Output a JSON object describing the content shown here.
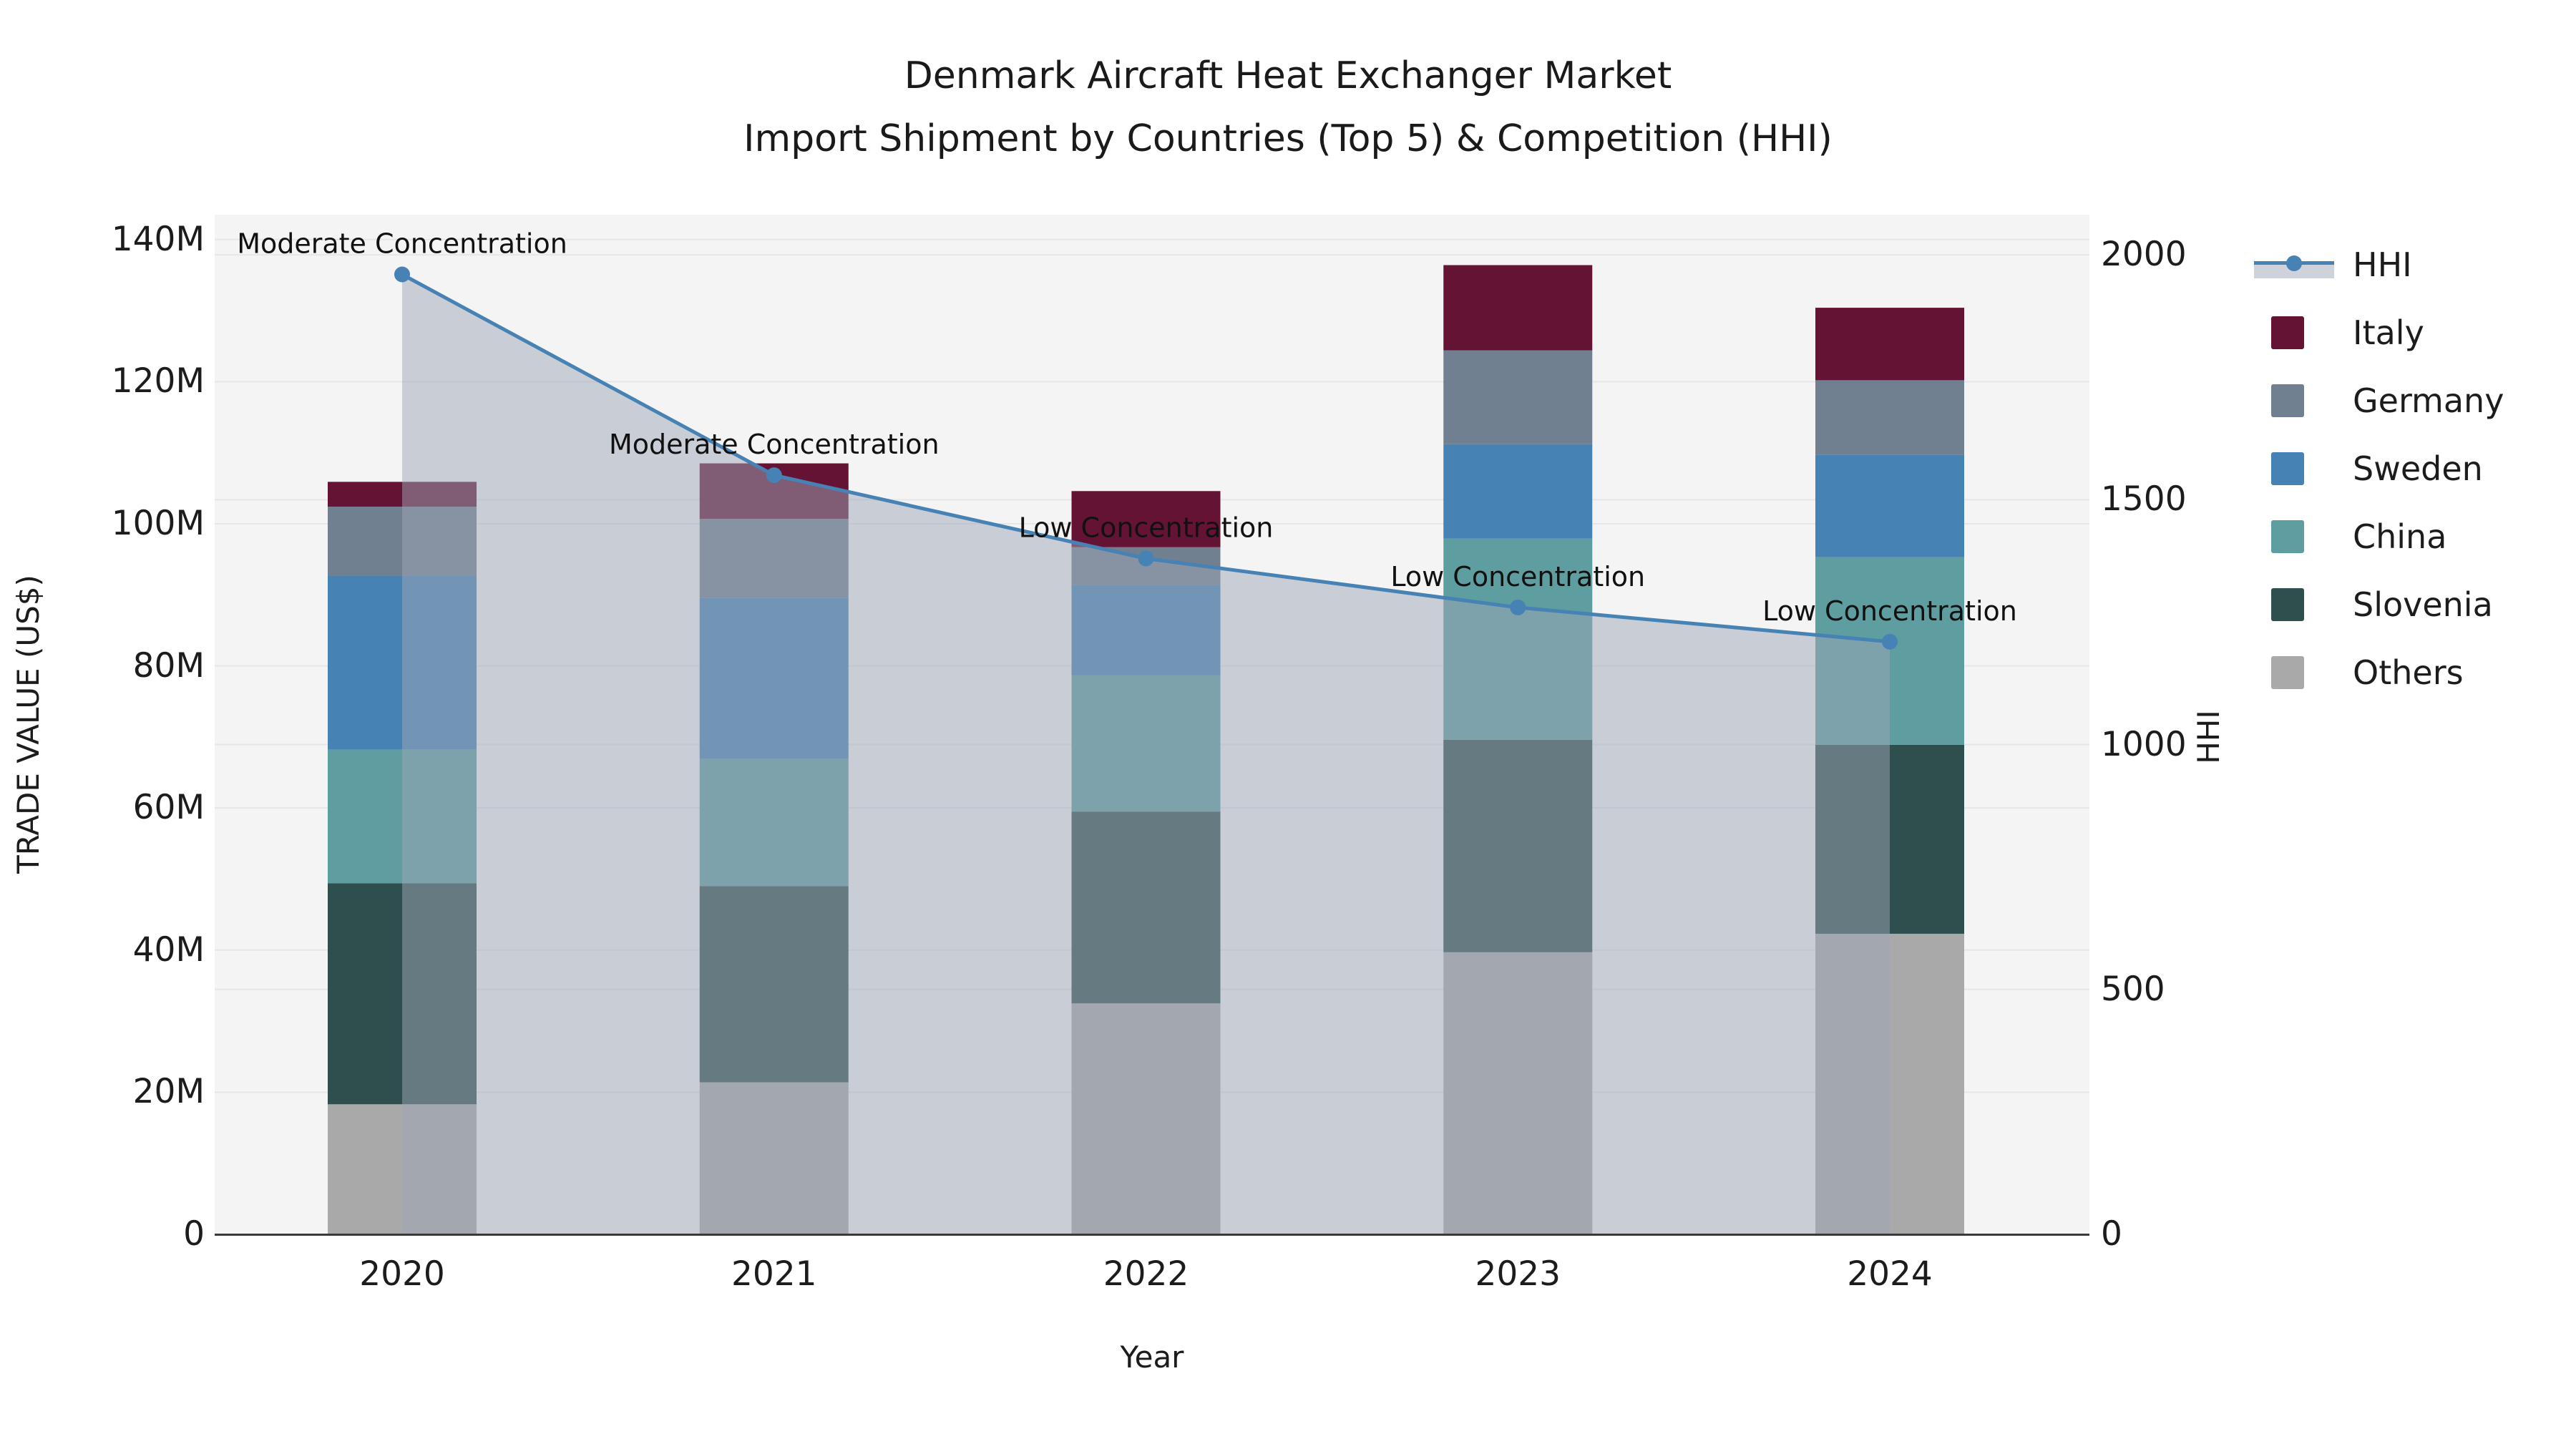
{
  "title": {
    "line1": "Denmark Aircraft Heat Exchanger Market",
    "line2": "Import Shipment by Countries (Top 5) & Competition (HHI)"
  },
  "axes": {
    "x_label": "Year",
    "y_left_label": "TRADE VALUE (US$)",
    "y_right_label": "HHI",
    "x_ticks": [
      "2020",
      "2021",
      "2022",
      "2023",
      "2024"
    ],
    "y_left_ticks": [
      "0",
      "20M",
      "40M",
      "60M",
      "80M",
      "100M",
      "120M",
      "140M"
    ],
    "y_left_tick_values": [
      0,
      20,
      40,
      60,
      80,
      100,
      120,
      140
    ],
    "y_right_ticks": [
      "0",
      "500",
      "1000",
      "1500",
      "2000"
    ],
    "y_right_tick_values": [
      0,
      500,
      1000,
      1500,
      2000
    ]
  },
  "legend": {
    "items": [
      "HHI",
      "Italy",
      "Germany",
      "Sweden",
      "China",
      "Slovenia",
      "Others"
    ]
  },
  "colors": {
    "Italy": "#651335",
    "Germany": "#708090",
    "Sweden": "#4682b4",
    "China": "#5f9ea0",
    "Slovenia": "#2f4f4f",
    "Others": "#a9a9a9",
    "hhi_line": "#4682b4",
    "hhi_fill": "#9ea6b6",
    "hhi_fill_opacity": 0.5,
    "plot_bg": "#f4f4f4",
    "grid": "#e5e6e8",
    "axis_line": "#3a3a3a",
    "text": "#1c1c1c"
  },
  "chart_data": {
    "type": "bar+line",
    "subtype": "stacked-bars-with-secondary-line",
    "unit": "Million US$",
    "categories": [
      "2020",
      "2021",
      "2022",
      "2023",
      "2024"
    ],
    "series": [
      {
        "name": "Others",
        "values": [
          18.3,
          21.4,
          32.5,
          39.7,
          42.3
        ]
      },
      {
        "name": "Slovenia",
        "values": [
          31.1,
          27.6,
          27.0,
          29.9,
          26.6
        ]
      },
      {
        "name": "China",
        "values": [
          18.8,
          17.9,
          19.2,
          28.3,
          26.4
        ]
      },
      {
        "name": "Sweden",
        "values": [
          24.5,
          22.7,
          12.7,
          13.3,
          14.4
        ]
      },
      {
        "name": "Germany",
        "values": [
          9.7,
          11.1,
          5.3,
          13.2,
          10.5
        ]
      },
      {
        "name": "Italy",
        "values": [
          3.5,
          7.8,
          7.9,
          12.0,
          10.2
        ]
      }
    ],
    "bar_totals": [
      105.9,
      108.5,
      104.6,
      136.4,
      130.4
    ],
    "hhi": {
      "name": "HHI",
      "values": [
        1960,
        1550,
        1380,
        1280,
        1210
      ]
    },
    "annotations": [
      "Moderate Concentration",
      "Moderate Concentration",
      "Low Concentration",
      "Low Concentration",
      "Low Concentration"
    ],
    "ylim_left_millions": [
      0,
      143.5
    ],
    "ylim_right": [
      0,
      2082
    ],
    "grid": true,
    "legend_position": "right"
  }
}
